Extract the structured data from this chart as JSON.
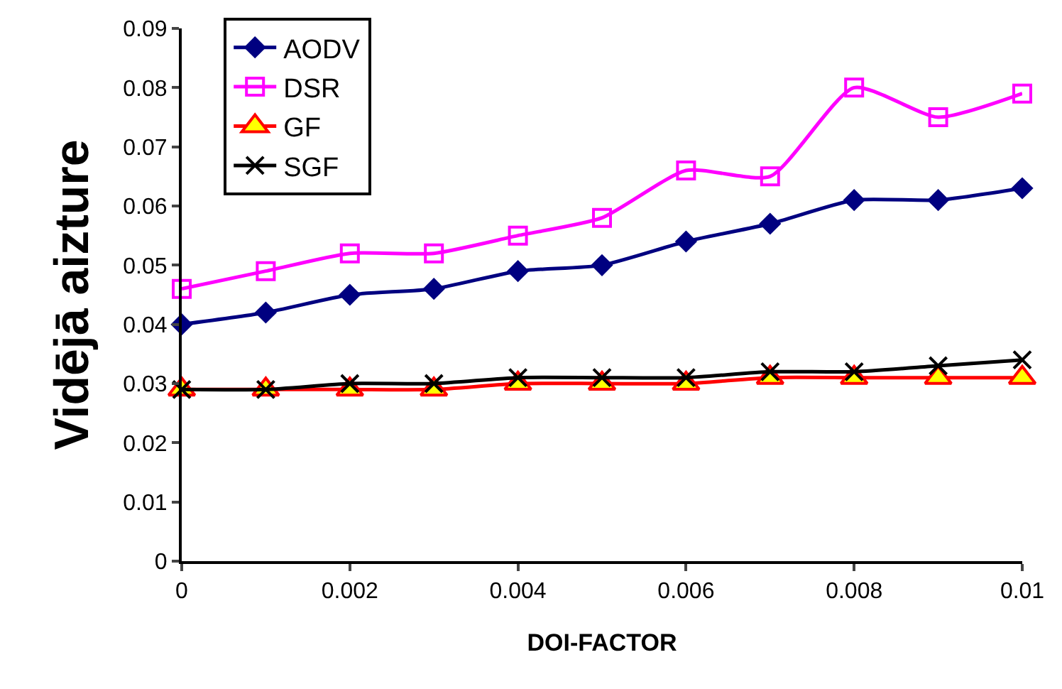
{
  "chart_data": {
    "type": "line",
    "xlabel": "DOI-FACTOR",
    "ylabel": "Vidējā aizture",
    "x": [
      0,
      0.001,
      0.002,
      0.003,
      0.004,
      0.005,
      0.006,
      0.007,
      0.008,
      0.009,
      0.01
    ],
    "series": [
      {
        "name": "AODV",
        "color": "#000080",
        "marker": "diamond",
        "values": [
          0.04,
          0.042,
          0.045,
          0.046,
          0.049,
          0.05,
          0.054,
          0.057,
          0.061,
          0.061,
          0.063
        ]
      },
      {
        "name": "DSR",
        "color": "#ff00ff",
        "marker": "square",
        "values": [
          0.046,
          0.049,
          0.052,
          0.052,
          0.055,
          0.058,
          0.066,
          0.065,
          0.08,
          0.075,
          0.079
        ]
      },
      {
        "name": "GF",
        "color": "#ff0000",
        "marker": "triangle",
        "values": [
          0.029,
          0.029,
          0.029,
          0.029,
          0.03,
          0.03,
          0.03,
          0.031,
          0.031,
          0.031,
          0.031
        ]
      },
      {
        "name": "SGF",
        "color": "#000000",
        "marker": "cross",
        "values": [
          0.029,
          0.029,
          0.03,
          0.03,
          0.031,
          0.031,
          0.031,
          0.032,
          0.032,
          0.033,
          0.034
        ]
      }
    ],
    "xlim": [
      0,
      0.01
    ],
    "xticks": [
      0,
      0.002,
      0.004,
      0.006,
      0.008,
      0.01
    ],
    "ylim": [
      0,
      0.09
    ],
    "yticks": [
      0,
      0.01,
      0.02,
      0.03,
      0.04,
      0.05,
      0.06,
      0.07,
      0.08,
      0.09
    ],
    "grid": false,
    "legend": "top left",
    "line_style": "solid"
  }
}
